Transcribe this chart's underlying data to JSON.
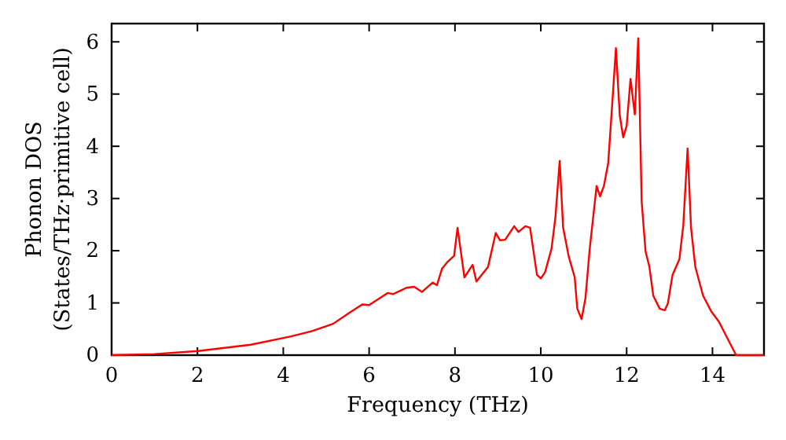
{
  "chart_data": {
    "type": "line",
    "xlabel": "Frequency (THz)",
    "ylabel": "Phonon DOS\n(States/THz·primitive cell)",
    "xlim": [
      0,
      15.2
    ],
    "ylim": [
      0,
      6.35
    ],
    "xticks": [
      0,
      2,
      4,
      6,
      8,
      10,
      12,
      14
    ],
    "yticks": [
      0,
      1,
      2,
      3,
      4,
      5,
      6
    ],
    "marker": "none",
    "line_style": "solid",
    "series": [
      {
        "color": "#ff0000",
        "x": [
          0,
          1,
          2.02,
          3.24,
          4.18,
          4.67,
          5.16,
          5.59,
          5.84,
          6.0,
          6.43,
          6.56,
          6.87,
          7.05,
          7.23,
          7.48,
          7.58,
          7.7,
          7.82,
          7.98,
          8.06,
          8.22,
          8.41,
          8.5,
          8.77,
          8.95,
          9.05,
          9.17,
          9.38,
          9.48,
          9.64,
          9.75,
          9.91,
          10.0,
          10.1,
          10.25,
          10.34,
          10.44,
          10.52,
          10.65,
          10.79,
          10.85,
          10.95,
          11.04,
          11.14,
          11.3,
          11.38,
          11.47,
          11.57,
          11.65,
          11.75,
          11.84,
          11.92,
          12.0,
          12.09,
          12.19,
          12.27,
          12.35,
          12.44,
          12.53,
          12.62,
          12.77,
          12.89,
          12.96,
          13.07,
          13.23,
          13.32,
          13.42,
          13.5,
          13.6,
          13.78,
          13.97,
          14.15,
          14.55,
          15.2
        ],
        "values": [
          0,
          0.02,
          0.08,
          0.2,
          0.36,
          0.46,
          0.6,
          0.84,
          0.97,
          0.96,
          1.19,
          1.17,
          1.29,
          1.31,
          1.21,
          1.39,
          1.34,
          1.66,
          1.78,
          1.9,
          2.44,
          1.49,
          1.73,
          1.41,
          1.69,
          2.34,
          2.2,
          2.21,
          2.47,
          2.36,
          2.47,
          2.44,
          1.54,
          1.47,
          1.59,
          2.04,
          2.64,
          3.72,
          2.44,
          1.89,
          1.49,
          0.89,
          0.69,
          1.09,
          2.04,
          3.24,
          3.04,
          3.24,
          3.68,
          4.64,
          5.88,
          4.59,
          4.17,
          4.39,
          5.29,
          4.61,
          6.07,
          2.94,
          1.99,
          1.69,
          1.14,
          0.89,
          0.86,
          0.99,
          1.54,
          1.84,
          2.49,
          3.96,
          2.44,
          1.69,
          1.14,
          0.84,
          0.64,
          0,
          0
        ]
      }
    ]
  }
}
